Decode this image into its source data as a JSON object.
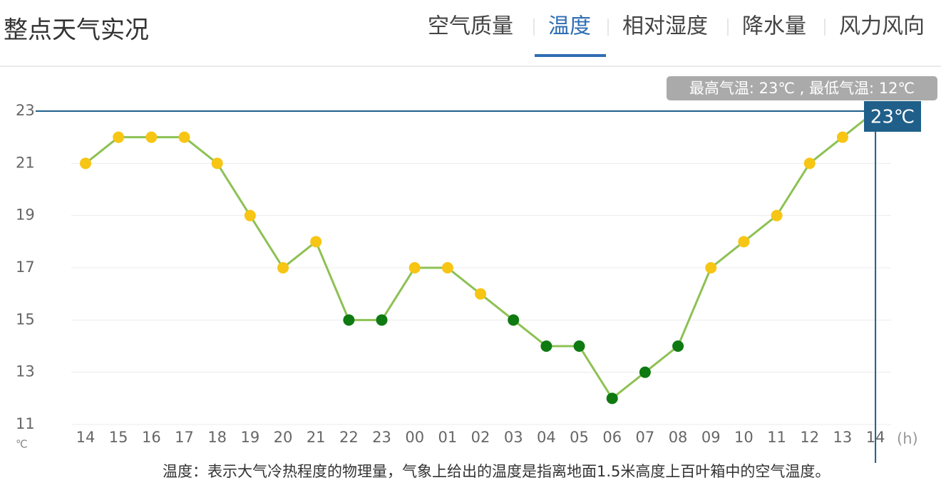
{
  "header": {
    "title": "整点天气实况"
  },
  "tabs": {
    "items": [
      "空气质量",
      "温度",
      "相对湿度",
      "降水量",
      "风力风向"
    ],
    "active": 1
  },
  "chart_data": {
    "type": "line",
    "categories": [
      "14",
      "15",
      "16",
      "17",
      "18",
      "19",
      "20",
      "21",
      "22",
      "23",
      "00",
      "01",
      "02",
      "03",
      "04",
      "05",
      "06",
      "07",
      "08",
      "09",
      "10",
      "11",
      "12",
      "13",
      "14"
    ],
    "values": [
      21,
      22,
      22,
      22,
      21,
      19,
      17,
      18,
      15,
      15,
      17,
      17,
      16,
      15,
      14,
      14,
      12,
      13,
      14,
      17,
      18,
      19,
      21,
      22,
      23
    ],
    "point_colors": [
      "#f7c514",
      "#f7c514",
      "#f7c514",
      "#f7c514",
      "#f7c514",
      "#f7c514",
      "#f7c514",
      "#f7c514",
      "#0f7a12",
      "#0f7a12",
      "#f7c514",
      "#f7c514",
      "#f7c514",
      "#0f7a12",
      "#0f7a12",
      "#0f7a12",
      "#0f7a12",
      "#0f7a12",
      "#0f7a12",
      "#f7c514",
      "#f7c514",
      "#f7c514",
      "#f7c514",
      "#f7c514",
      "#f7c514"
    ],
    "line_color": "#8dc153",
    "ylim": [
      11,
      23
    ],
    "yticks": [
      11,
      13,
      15,
      17,
      19,
      21,
      23
    ],
    "grid": true,
    "y_unit": "℃",
    "x_unit": "(h)",
    "crosshair": {
      "index": 24,
      "label": "23℃",
      "color": "#1f5f8a"
    },
    "tooltip": "最高气温: 23℃ , 最低气温: 12℃"
  },
  "footnote": "温度：表示大气冷热程度的物理量，气象上给出的温度是指离地面1.5米高度上百叶箱中的空气温度。"
}
